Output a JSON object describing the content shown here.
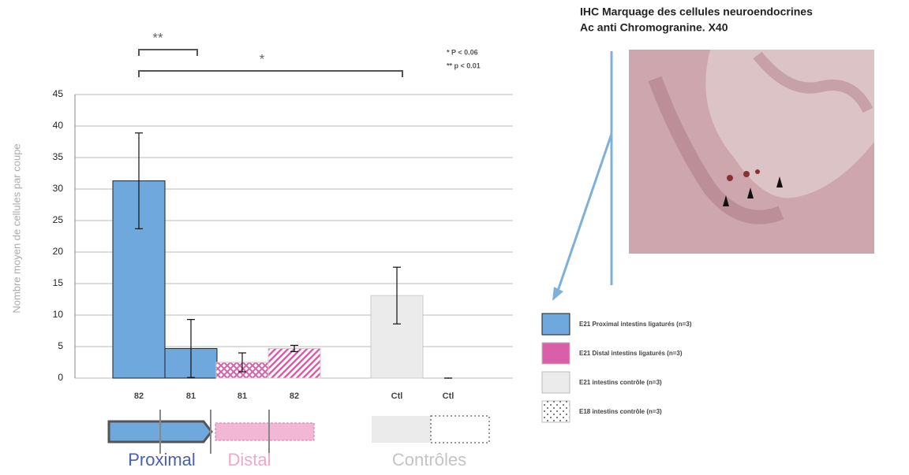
{
  "chart_data": {
    "type": "bar",
    "y_label": "Nombre moyen de cellules par coupe",
    "categories": [
      "82",
      "81",
      "81",
      "82",
      "Ctl",
      "Ctl"
    ],
    "values": [
      31.3,
      4.7,
      2.5,
      4.7,
      13.1,
      0
    ],
    "errors": [
      7.6,
      4.6,
      1.5,
      0.5,
      4.5,
      0
    ],
    "colors": [
      "#6fa8dc",
      "#6fa8dc",
      "#d95fa8",
      "#d95fa8",
      "#ebebeb",
      "#ebebeb"
    ],
    "patterns": [
      "solid",
      "solid",
      "cross",
      "diagonal",
      "solid",
      "solid"
    ],
    "ylim": [
      0,
      45
    ],
    "yticks": [
      0,
      5,
      10,
      15,
      20,
      25,
      30,
      35,
      40,
      45
    ],
    "grid": true,
    "significance": [
      {
        "label": "**",
        "from": 0,
        "to": 1
      },
      {
        "label": "*",
        "from": 0,
        "to": 4
      }
    ],
    "p_notes": [
      "* P < 0.06",
      "** p < 0.01"
    ],
    "legend": [
      {
        "name": "E21 Proximal intestins ligaturés (n=3)",
        "color": "#6fa8dc",
        "pattern": "solid"
      },
      {
        "name": "E21 Distal intestins ligaturés (n=3)",
        "color": "#d95fa8",
        "pattern": "solid"
      },
      {
        "name": "E21 intestins contrôle (n=3)",
        "color": "#ebebeb",
        "pattern": "solid"
      },
      {
        "name": "E18 intestins contrôle (n=3)",
        "color": "#ffffff",
        "pattern": "dots"
      }
    ],
    "group_labels": [
      {
        "text": "Proximal",
        "color": "#4a5fb0"
      },
      {
        "text": "Distal",
        "color": "#f0a8cc"
      },
      {
        "text": "Contrôles",
        "color": "#c4c4c4"
      }
    ]
  },
  "image_title": [
    "IHC Marquage des cellules neuroendocrines",
    "Ac anti Chromogranine. X40"
  ]
}
